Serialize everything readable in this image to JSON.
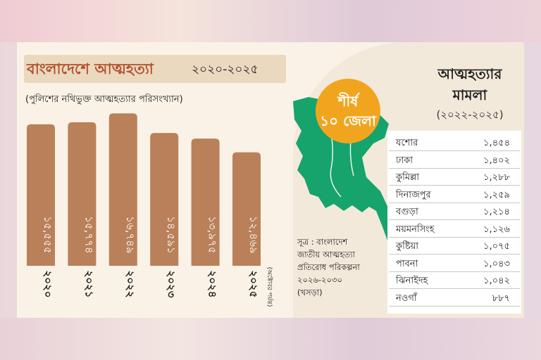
{
  "title": {
    "main": "বাংলাদেশে আত্মহত্যা",
    "years": "২০২০-২০২৫"
  },
  "subtitle": "(পুলিশের নথিভুক্ত আত্মহত্যার পরিসংখ্যান)",
  "chart_data": {
    "type": "bar",
    "categories": [
      "২০২০",
      "২০২১",
      "২০২২",
      "২০২৩",
      "২০২৪",
      "২০২৫"
    ],
    "category_note": "(অক্টোবর পর্যন্ত)",
    "values": [
      15555,
      15774,
      16749,
      14591,
      13975,
      12469
    ],
    "value_labels": [
      "১৫,৫৫৫",
      "১৫,৭৭৪",
      "১৬,৭৪৯",
      "১৪,৫৯১",
      "১৩,৯৭৫",
      "১২,৪৬৯"
    ],
    "ylim": [
      0,
      17000
    ],
    "bar_color": "#b9805a"
  },
  "badge": {
    "line1": "শীর্ষ",
    "line2": "১০ জেলা",
    "color": "#f1a51f"
  },
  "map": {
    "color": "#16a36c"
  },
  "table": {
    "title_line1": "আত্মহত্যার",
    "title_line2": "মামলা",
    "years": "(২০২২-২০২৫)",
    "rows": [
      {
        "district": "যশোর",
        "value": "১,৪৫৪"
      },
      {
        "district": "ঢাকা",
        "value": "১,৪০২"
      },
      {
        "district": "কুমিল্লা",
        "value": "১,২৮৮"
      },
      {
        "district": "দিনাজপুর",
        "value": "১,২৫৯"
      },
      {
        "district": "বগুড়া",
        "value": "১,২১৪"
      },
      {
        "district": "ময়মনসিংহ",
        "value": "১,১২৬"
      },
      {
        "district": "কুষ্টিয়া",
        "value": "১,০৭৫"
      },
      {
        "district": "পাবনা",
        "value": "১,০৪৩"
      },
      {
        "district": "ঝিনাইদহ",
        "value": "১,০৪২"
      },
      {
        "district": "নওগাঁ",
        "value": "৮৮৭"
      }
    ]
  },
  "source": {
    "line1": "সূত্র : বাংলাদেশ",
    "line2": "জাতীয় আত্মহত্যা",
    "line3": "প্রতিরোধ পরিকল্পনা",
    "line4": "২০২৬-২০৩০",
    "line5": "(খসড়া)"
  }
}
